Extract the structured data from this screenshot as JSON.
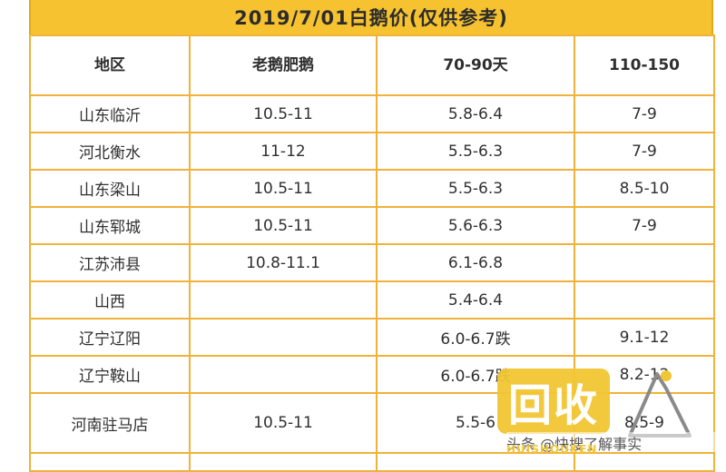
{
  "title": "2019/7/01白鹅价(仅供参考)",
  "headers": [
    "地区",
    "老鹅肥鹅",
    "70-90天",
    "110-150"
  ],
  "rows": [
    {
      "region": "山东临沂",
      "old": "10.5-11",
      "young": "5.8-6.4",
      "mid": "7-9"
    },
    {
      "region": "河北衡水",
      "old": "11-12",
      "young": "5.5-6.3",
      "mid": "7-9"
    },
    {
      "region": "山东梁山",
      "old": "10.5-11",
      "young": "5.5-6.3",
      "mid": "8.5-10"
    },
    {
      "region": "山东郓城",
      "old": "10.5-11",
      "young": "5.6-6.3",
      "mid": "7-9"
    },
    {
      "region": "江苏沛县",
      "old": "10.8-11.1",
      "young": "6.1-6.8",
      "mid": ""
    },
    {
      "region": "山西",
      "old": "",
      "young": "5.4-6.4",
      "mid": ""
    },
    {
      "region": "辽宁辽阳",
      "old": "",
      "young": "6.0-6.7跌",
      "mid": "9.1-12"
    },
    {
      "region": "辽宁鞍山",
      "old": "",
      "young": "6.0-6.7跌",
      "mid": "8.2-12"
    },
    {
      "region": "河南驻马店",
      "old": "10.5-11",
      "young": "5.5-6",
      "mid": "8.5-9"
    }
  ],
  "colors": {
    "header_bg": "#f7c230",
    "border": "#f0b23a",
    "drop_text": "#1aa332"
  },
  "watermark": {
    "logo_text": "回收",
    "caption": "头条 @快搜了解事实",
    "roman": "HUISHOUKEN"
  }
}
